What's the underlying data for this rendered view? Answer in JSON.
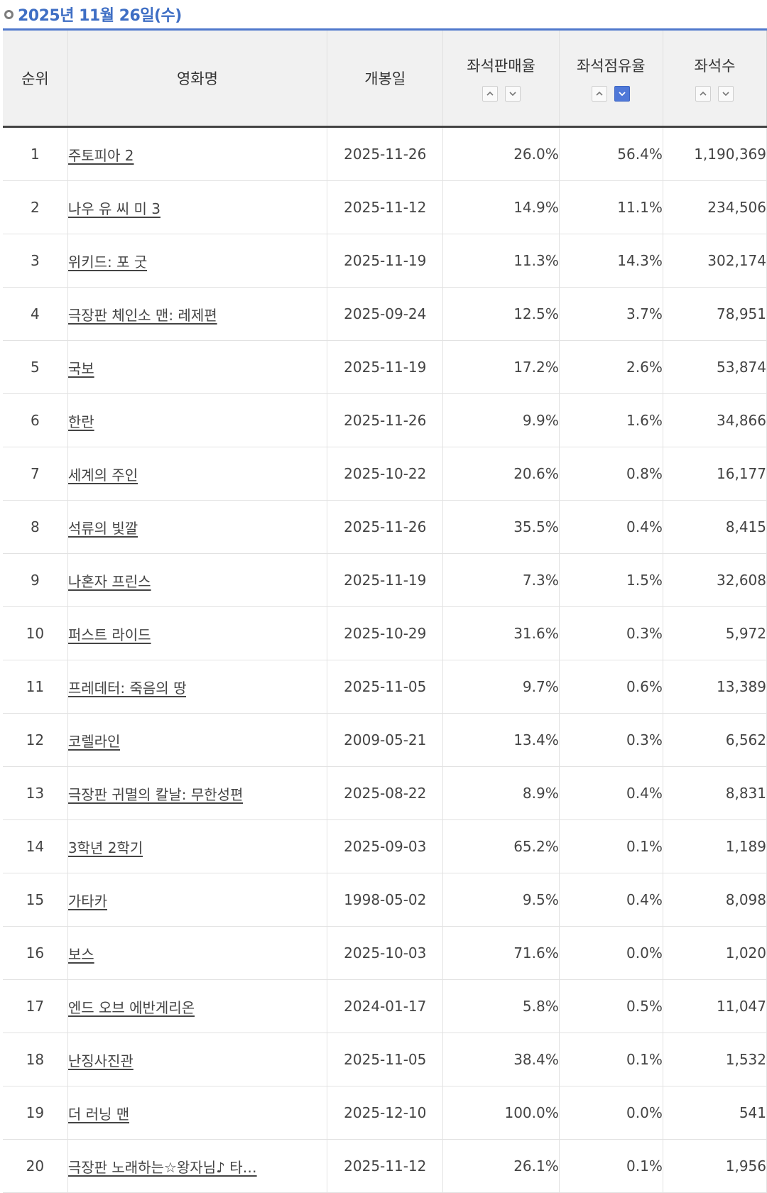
{
  "header": {
    "date": "2025년 11월 26일(수)"
  },
  "columns": {
    "rank": "순위",
    "title": "영화명",
    "release": "개봉일",
    "sales_rate": "좌석판매율",
    "share": "좌석점유율",
    "seats": "좌석수"
  },
  "sort": {
    "active_column": "share",
    "active_direction": "desc"
  },
  "colors": {
    "accent": "#3e6ec4",
    "sort_active": "#4f78d8"
  },
  "rows": [
    {
      "rank": "1",
      "title": "주토피아 2",
      "release": "2025-11-26",
      "sales_rate": "26.0%",
      "share": "56.4%",
      "seats": "1,190,369"
    },
    {
      "rank": "2",
      "title": "나우 유 씨 미 3",
      "release": "2025-11-12",
      "sales_rate": "14.9%",
      "share": "11.1%",
      "seats": "234,506"
    },
    {
      "rank": "3",
      "title": "위키드: 포 굿",
      "release": "2025-11-19",
      "sales_rate": "11.3%",
      "share": "14.3%",
      "seats": "302,174"
    },
    {
      "rank": "4",
      "title": "극장판 체인소 맨: 레제편",
      "release": "2025-09-24",
      "sales_rate": "12.5%",
      "share": "3.7%",
      "seats": "78,951"
    },
    {
      "rank": "5",
      "title": "국보",
      "release": "2025-11-19",
      "sales_rate": "17.2%",
      "share": "2.6%",
      "seats": "53,874"
    },
    {
      "rank": "6",
      "title": "한란",
      "release": "2025-11-26",
      "sales_rate": "9.9%",
      "share": "1.6%",
      "seats": "34,866"
    },
    {
      "rank": "7",
      "title": "세계의 주인",
      "release": "2025-10-22",
      "sales_rate": "20.6%",
      "share": "0.8%",
      "seats": "16,177"
    },
    {
      "rank": "8",
      "title": "석류의 빛깔",
      "release": "2025-11-26",
      "sales_rate": "35.5%",
      "share": "0.4%",
      "seats": "8,415"
    },
    {
      "rank": "9",
      "title": "나혼자 프린스",
      "release": "2025-11-19",
      "sales_rate": "7.3%",
      "share": "1.5%",
      "seats": "32,608"
    },
    {
      "rank": "10",
      "title": "퍼스트 라이드",
      "release": "2025-10-29",
      "sales_rate": "31.6%",
      "share": "0.3%",
      "seats": "5,972"
    },
    {
      "rank": "11",
      "title": "프레데터: 죽음의 땅",
      "release": "2025-11-05",
      "sales_rate": "9.7%",
      "share": "0.6%",
      "seats": "13,389"
    },
    {
      "rank": "12",
      "title": "코렐라인",
      "release": "2009-05-21",
      "sales_rate": "13.4%",
      "share": "0.3%",
      "seats": "6,562"
    },
    {
      "rank": "13",
      "title": "극장판 귀멸의 칼날: 무한성편",
      "release": "2025-08-22",
      "sales_rate": "8.9%",
      "share": "0.4%",
      "seats": "8,831"
    },
    {
      "rank": "14",
      "title": "3학년 2학기",
      "release": "2025-09-03",
      "sales_rate": "65.2%",
      "share": "0.1%",
      "seats": "1,189"
    },
    {
      "rank": "15",
      "title": "가타카",
      "release": "1998-05-02",
      "sales_rate": "9.5%",
      "share": "0.4%",
      "seats": "8,098"
    },
    {
      "rank": "16",
      "title": "보스",
      "release": "2025-10-03",
      "sales_rate": "71.6%",
      "share": "0.0%",
      "seats": "1,020"
    },
    {
      "rank": "17",
      "title": "엔드 오브 에반게리온",
      "release": "2024-01-17",
      "sales_rate": "5.8%",
      "share": "0.5%",
      "seats": "11,047"
    },
    {
      "rank": "18",
      "title": "난징사진관",
      "release": "2025-11-05",
      "sales_rate": "38.4%",
      "share": "0.1%",
      "seats": "1,532"
    },
    {
      "rank": "19",
      "title": "더 러닝 맨",
      "release": "2025-12-10",
      "sales_rate": "100.0%",
      "share": "0.0%",
      "seats": "541"
    },
    {
      "rank": "20",
      "title": "극장판 노래하는☆왕자님♪ 타…",
      "release": "2025-11-12",
      "sales_rate": "26.1%",
      "share": "0.1%",
      "seats": "1,956"
    }
  ]
}
